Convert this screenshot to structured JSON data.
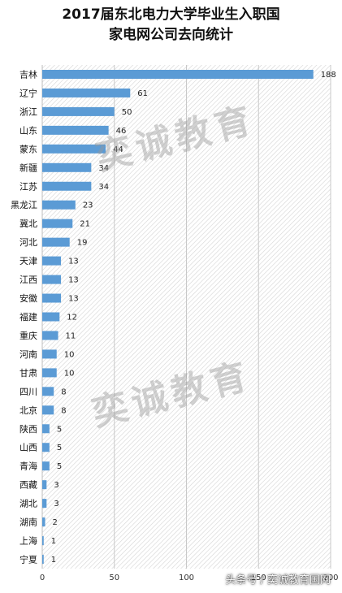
{
  "chart_data": {
    "type": "bar",
    "orientation": "horizontal",
    "title_lines": [
      "2017届东北电力大学毕业生入职国",
      "家电网公司去向统计"
    ],
    "categories": [
      "吉林",
      "辽宁",
      "浙江",
      "山东",
      "蒙东",
      "新疆",
      "江苏",
      "黑龙江",
      "冀北",
      "河北",
      "天津",
      "江西",
      "安徽",
      "福建",
      "重庆",
      "河南",
      "甘肃",
      "四川",
      "北京",
      "陕西",
      "山西",
      "青海",
      "西藏",
      "湖北",
      "湖南",
      "上海",
      "宁夏"
    ],
    "values": [
      188,
      61,
      50,
      46,
      44,
      34,
      34,
      23,
      21,
      19,
      13,
      13,
      13,
      12,
      11,
      10,
      10,
      8,
      8,
      5,
      5,
      5,
      3,
      3,
      2,
      1,
      1
    ],
    "xticks": [
      "0",
      "50",
      "100",
      "150",
      "200"
    ],
    "xlim": [
      0,
      200
    ],
    "bar_color": "#5b9bd5",
    "grid": true
  },
  "watermark": "奕诚教育",
  "footer": "头条号 / 奕诚教育国网"
}
